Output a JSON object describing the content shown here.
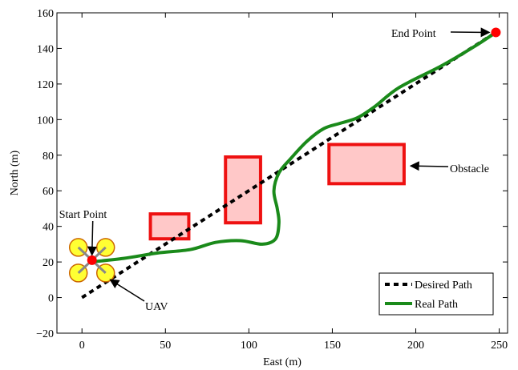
{
  "chart_data": {
    "type": "line",
    "xlabel": "East (m)",
    "ylabel": "North (m)",
    "xlim": [
      -15,
      255
    ],
    "ylim": [
      -20,
      160
    ],
    "xticks": [
      0,
      50,
      100,
      150,
      200,
      250
    ],
    "yticks": [
      -20,
      0,
      20,
      40,
      60,
      80,
      100,
      120,
      140,
      160
    ],
    "xtick_labels": [
      "0",
      "50",
      "100",
      "150",
      "200",
      "250"
    ],
    "ytick_labels": [
      "−20",
      "0",
      "20",
      "40",
      "60",
      "80",
      "100",
      "120",
      "140",
      "160"
    ],
    "grid": false,
    "legend_position": "bottom-right",
    "series": [
      {
        "name": "Desired Path",
        "style": "dashed",
        "color": "#000000",
        "points": [
          [
            0,
            0
          ],
          [
            248,
            149
          ]
        ]
      },
      {
        "name": "Real Path",
        "style": "solid",
        "color": "#1a8a1a",
        "points": [
          [
            5,
            20
          ],
          [
            25,
            22
          ],
          [
            45,
            25
          ],
          [
            65,
            27
          ],
          [
            80,
            31
          ],
          [
            95,
            32
          ],
          [
            108,
            30
          ],
          [
            116,
            33
          ],
          [
            118,
            42
          ],
          [
            117,
            50
          ],
          [
            115,
            60
          ],
          [
            118,
            70
          ],
          [
            125,
            78
          ],
          [
            135,
            88
          ],
          [
            145,
            95
          ],
          [
            155,
            98
          ],
          [
            165,
            101
          ],
          [
            175,
            107
          ],
          [
            190,
            118
          ],
          [
            215,
            130
          ],
          [
            235,
            141
          ],
          [
            248,
            149
          ]
        ]
      }
    ],
    "obstacles": [
      {
        "x_min": 41,
        "x_max": 64,
        "y_min": 33,
        "y_max": 47
      },
      {
        "x_min": 86,
        "x_max": 107,
        "y_min": 42,
        "y_max": 79
      },
      {
        "x_min": 148,
        "x_max": 193,
        "y_min": 64,
        "y_max": 86
      }
    ],
    "markers": [
      {
        "name": "start",
        "x": 6,
        "y": 21,
        "color": "#ff0000"
      },
      {
        "name": "end",
        "x": 248,
        "y": 149,
        "color": "#ff0000"
      }
    ],
    "annotations": [
      {
        "text": "Start Point",
        "target_x": 6,
        "target_y": 24
      },
      {
        "text": "End Point",
        "target_x": 244,
        "target_y": 149
      },
      {
        "text": "Obstacle",
        "target_x": 197,
        "target_y": 74
      },
      {
        "text": "UAV",
        "target_x": 17,
        "target_y": 10
      }
    ],
    "colors": {
      "obstacle_fill": "#ffc8c8",
      "obstacle_stroke": "#ee1111",
      "propeller_fill": "#ffff33",
      "propeller_stroke": "#cc6600",
      "arm": "#888888"
    }
  }
}
